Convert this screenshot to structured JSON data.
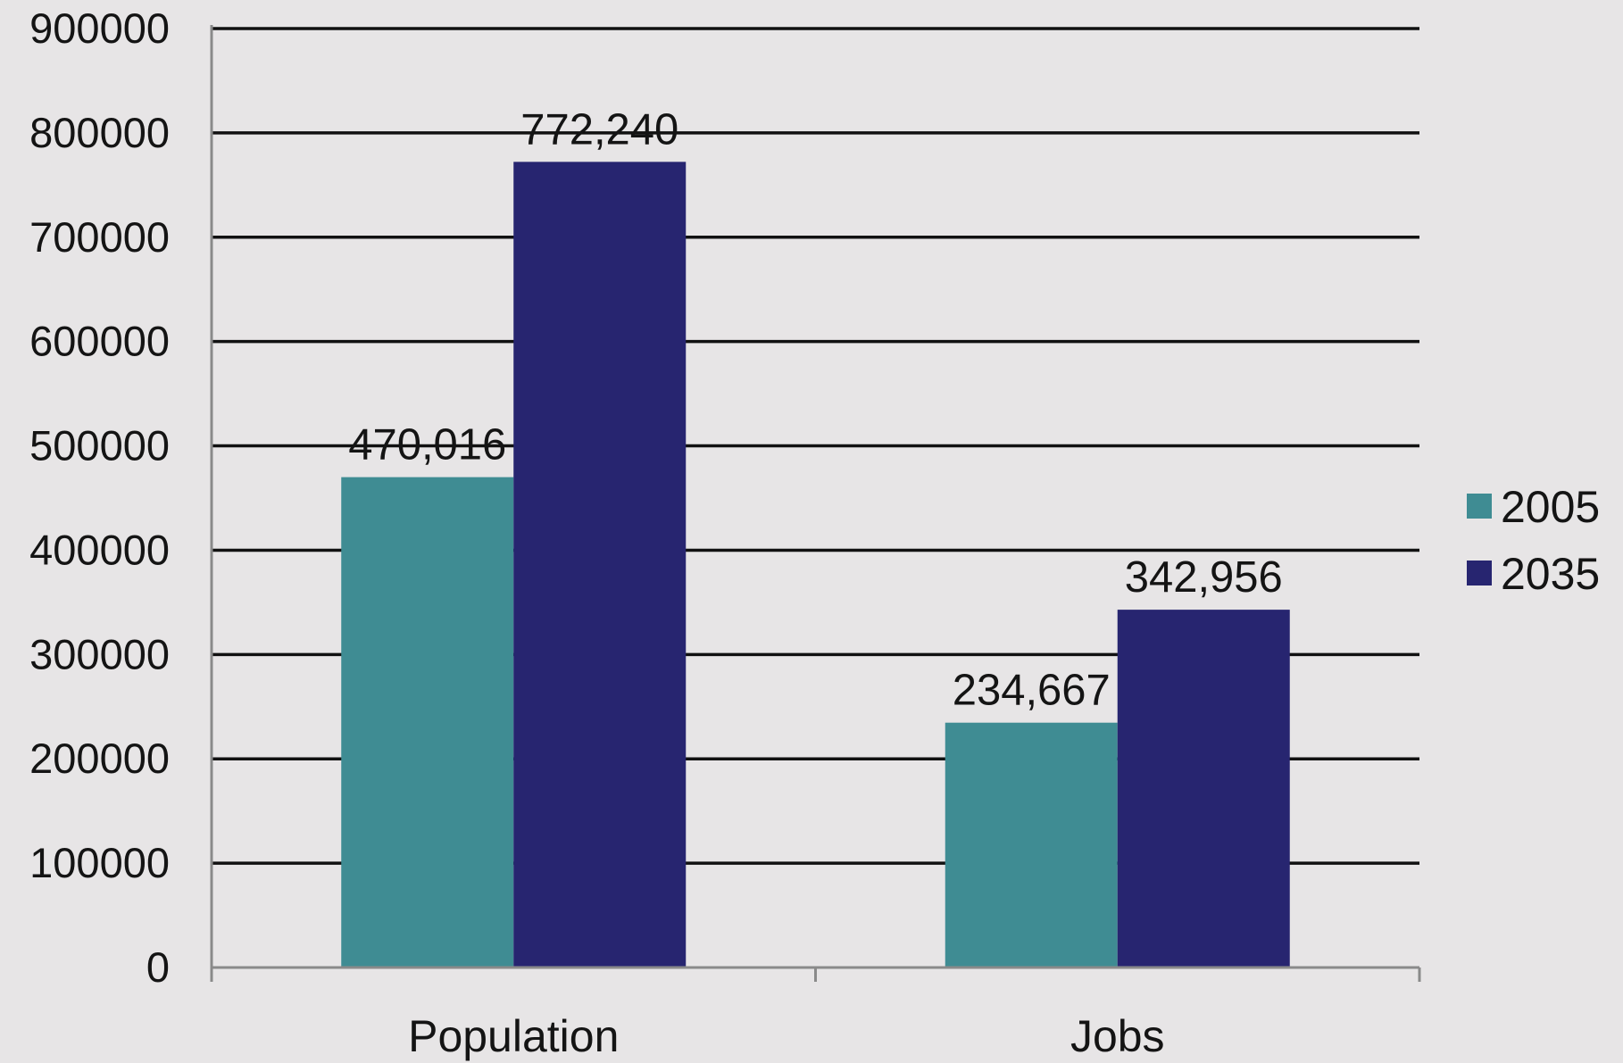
{
  "chart_data": {
    "type": "bar",
    "categories": [
      "Population",
      "Jobs"
    ],
    "series": [
      {
        "name": "2005",
        "values": [
          470016,
          234667
        ],
        "labels": [
          "470,016",
          "234,667"
        ],
        "color": "#3f8c93"
      },
      {
        "name": "2035",
        "values": [
          772240,
          342956
        ],
        "labels": [
          "772,240",
          "342,956"
        ],
        "color": "#272570"
      }
    ],
    "title": "",
    "xlabel": "",
    "ylabel": "",
    "ylim": [
      0,
      900000
    ],
    "yticks": [
      0,
      100000,
      200000,
      300000,
      400000,
      500000,
      600000,
      700000,
      800000,
      900000
    ],
    "ytick_labels": [
      "0",
      "100000",
      "200000",
      "300000",
      "400000",
      "500000",
      "600000",
      "700000",
      "800000",
      "900000"
    ],
    "grid": true,
    "legend": "right"
  }
}
